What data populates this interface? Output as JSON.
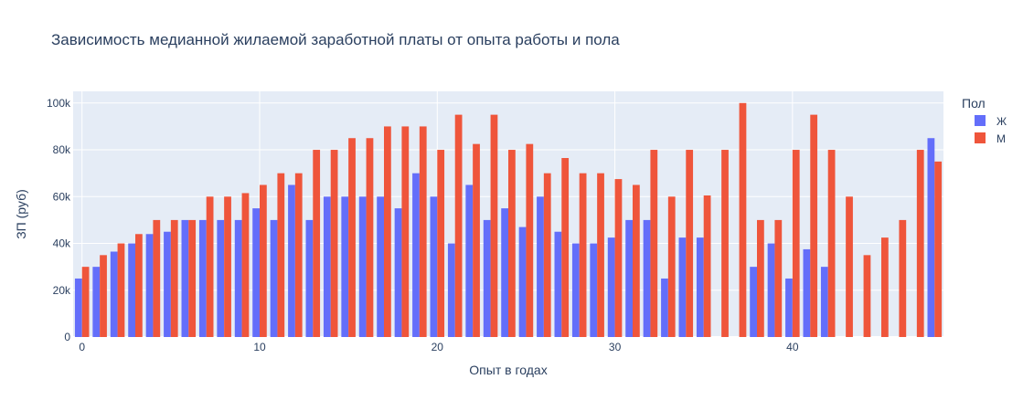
{
  "chart_data": {
    "type": "bar",
    "title": "Зависимость медианной жилаемой заработной платы от опыта работы и пола",
    "xlabel": "Опыт в годах",
    "ylabel": "ЗП (руб)",
    "legend_title": "Пол",
    "legend_placement": "top-right",
    "xlim": [
      -0.5,
      48.5
    ],
    "ylim": [
      0,
      105000
    ],
    "x_ticks": [
      0,
      10,
      20,
      30,
      40
    ],
    "y_ticks": [
      0,
      20000,
      40000,
      60000,
      80000,
      100000
    ],
    "y_tick_labels": [
      "0",
      "20k",
      "40k",
      "60k",
      "80k",
      "100k"
    ],
    "grid": true,
    "x": [
      0,
      1,
      2,
      3,
      4,
      5,
      6,
      7,
      8,
      9,
      10,
      11,
      12,
      13,
      14,
      15,
      16,
      17,
      18,
      19,
      20,
      21,
      22,
      23,
      24,
      25,
      26,
      27,
      28,
      29,
      30,
      31,
      32,
      33,
      34,
      35,
      36,
      37,
      38,
      39,
      40,
      41,
      42,
      43,
      44,
      45,
      46,
      47,
      48
    ],
    "series": [
      {
        "name": "Ж",
        "color": "#636efa",
        "values": [
          25000,
          30000,
          36500,
          40000,
          44000,
          45000,
          50000,
          50000,
          50000,
          50000,
          55000,
          50000,
          65000,
          50000,
          60000,
          60000,
          60000,
          60000,
          55000,
          70000,
          60000,
          40000,
          65000,
          50000,
          55000,
          47000,
          60000,
          45000,
          40000,
          40000,
          42500,
          50000,
          50000,
          25000,
          42500,
          42500,
          null,
          null,
          30000,
          40000,
          25000,
          37500,
          30000,
          null,
          null,
          null,
          null,
          null,
          85000
        ]
      },
      {
        "name": "М",
        "color": "#ef553b",
        "values": [
          30000,
          35000,
          40000,
          44000,
          50000,
          50000,
          50000,
          60000,
          60000,
          61500,
          65000,
          70000,
          70000,
          80000,
          80000,
          85000,
          85000,
          90000,
          90000,
          90000,
          80000,
          95000,
          82500,
          95000,
          80000,
          82500,
          70000,
          76500,
          70000,
          70000,
          67500,
          65000,
          80000,
          60000,
          80000,
          60500,
          80000,
          100000,
          50000,
          50000,
          80000,
          95000,
          80000,
          60000,
          35000,
          42500,
          50000,
          80000,
          75000
        ]
      }
    ]
  }
}
